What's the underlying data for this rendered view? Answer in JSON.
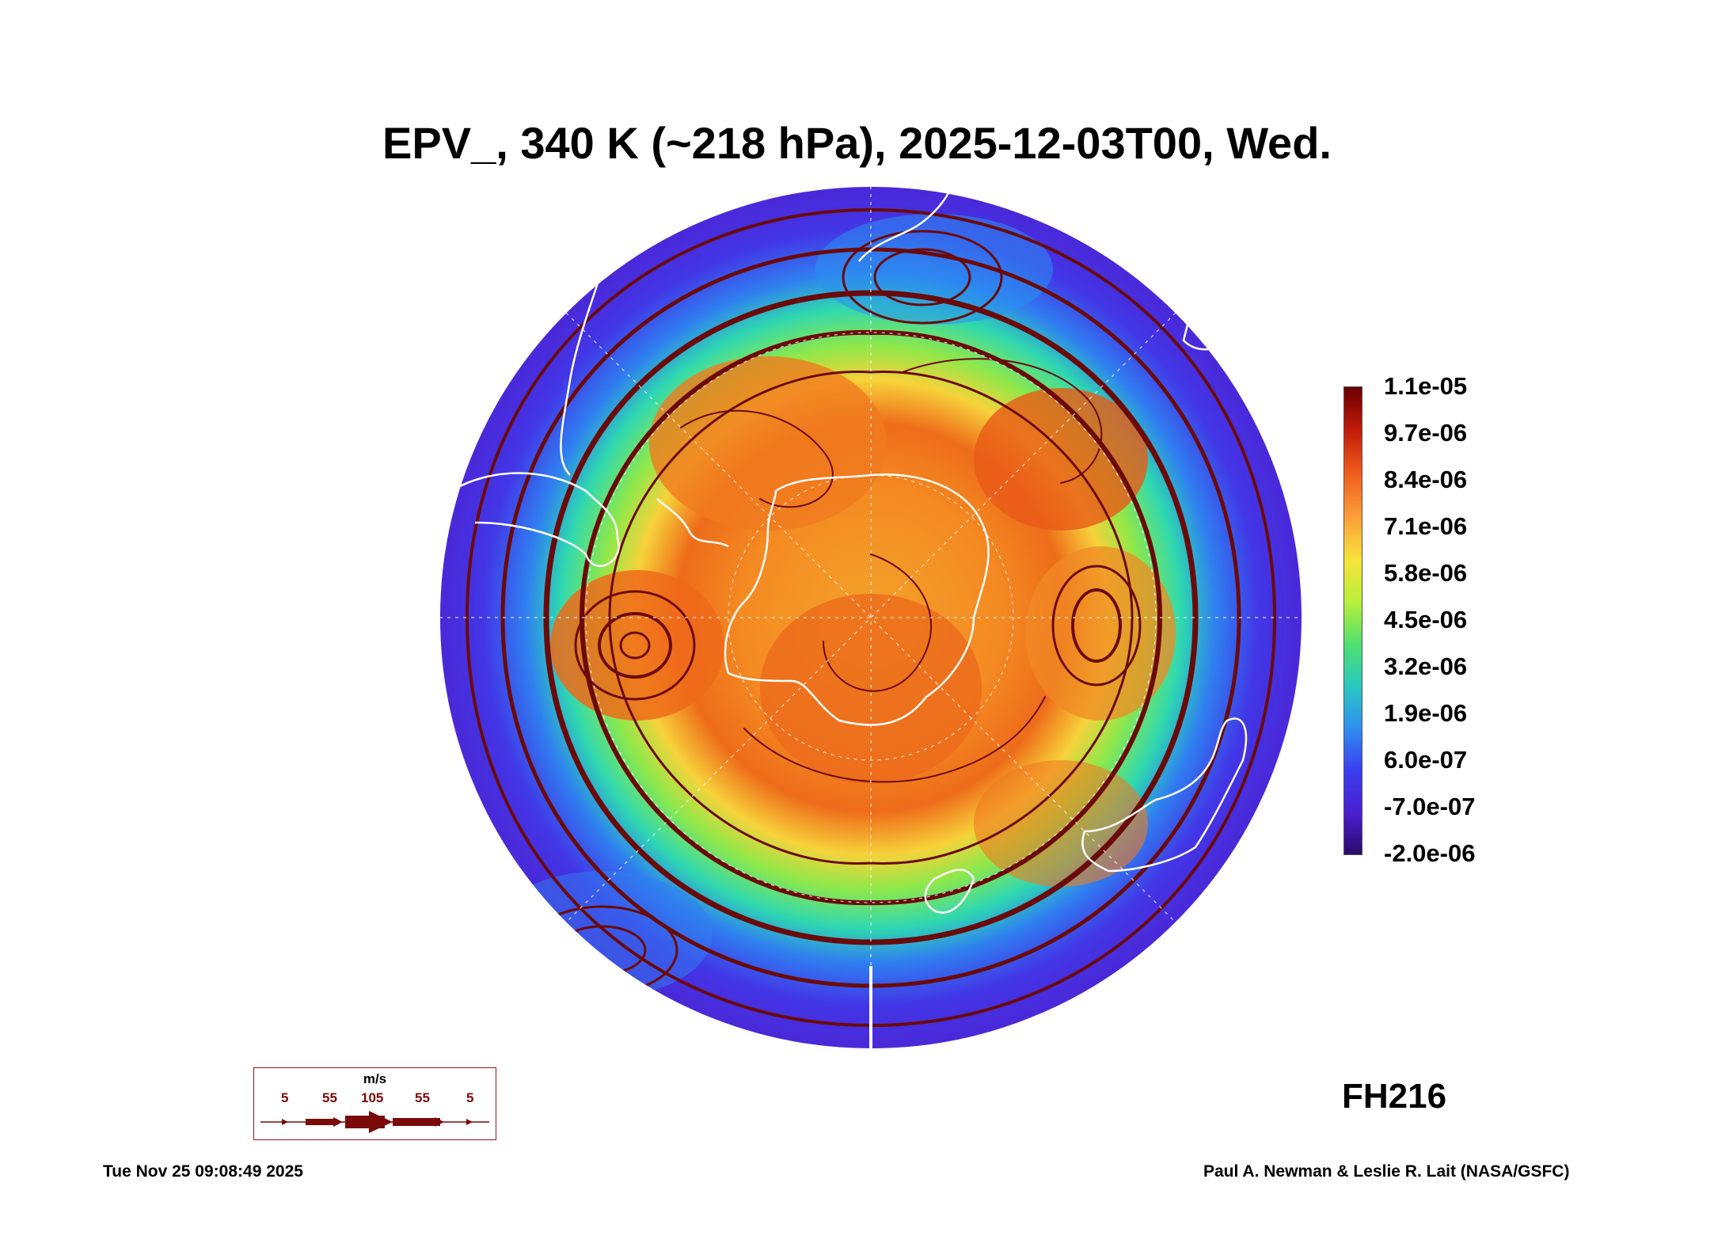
{
  "title": "EPV_, 340 K (~218 hPa), 2025-12-03T00, Wed.",
  "colorbar": {
    "ticks": [
      "1.1e-05",
      "9.7e-06",
      "8.4e-06",
      "7.1e-06",
      "5.8e-06",
      "4.5e-06",
      "3.2e-06",
      "1.9e-06",
      "6.0e-07",
      "-7.0e-07",
      "-2.0e-06"
    ],
    "colors": {
      "low": "#2a0a6b",
      "mid": "#4fe070",
      "high": "#6a0000"
    }
  },
  "forecast_hour": "FH216",
  "wind_legend": {
    "unit": "m/s",
    "labels": [
      "5",
      "55",
      "105",
      "55",
      "5"
    ]
  },
  "timestamp": "Tue Nov 25 09:08:49 2025",
  "credit": "Paul A. Newman & Leslie R. Lait (NASA/GSFC)",
  "colors": {
    "streamline": "#6b0a0a",
    "coastline": "#ffffff"
  }
}
